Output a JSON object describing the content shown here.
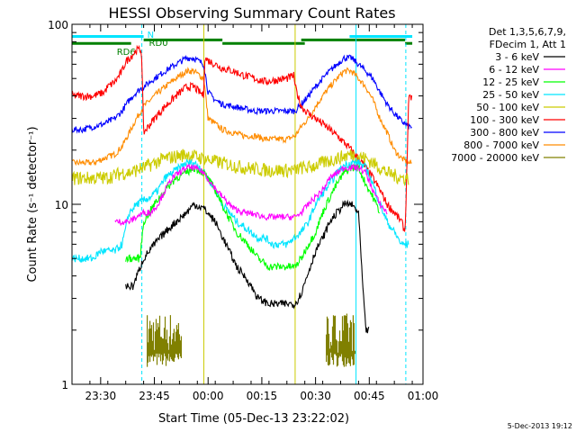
{
  "chart_data": {
    "type": "line",
    "title": "HESSI Observing Summary Count Rates",
    "xlabel": "Start Time (05-Dec-13 23:22:02)",
    "ylabel": "Count Rate (s⁻¹ detector⁻¹)",
    "xlim": [
      0,
      98
    ],
    "ylim": [
      1,
      100
    ],
    "yscale": "log",
    "x_unit": "minutes after 23:22:02",
    "x_ticks": [
      {
        "t": 8,
        "label": "23:30"
      },
      {
        "t": 23,
        "label": "23:45"
      },
      {
        "t": 38,
        "label": "00:00"
      },
      {
        "t": 53,
        "label": "00:15"
      },
      {
        "t": 68,
        "label": "00:30"
      },
      {
        "t": 83,
        "label": "00:45"
      },
      {
        "t": 98,
        "label": "01:00"
      }
    ],
    "y_ticks": [
      {
        "v": 1,
        "label": "1"
      },
      {
        "v": 10,
        "label": "10"
      },
      {
        "v": 100,
        "label": "100"
      }
    ],
    "legend": {
      "header": [
        "Det 1,3,5,6,7,9,",
        "FDecim 1, Att 1"
      ],
      "placement": "right"
    },
    "flags": [
      {
        "name": "N",
        "color": "#00e5ff",
        "y": 90,
        "segments": [
          [
            0,
            20
          ],
          [
            77.5,
            95
          ]
        ]
      },
      {
        "name": "RD0",
        "color": "#008000",
        "y": 83,
        "segments": [
          [
            20,
            42
          ],
          [
            64,
            93
          ]
        ]
      },
      {
        "name": "RD6",
        "color": "#008000",
        "y": 76,
        "segments": [
          [
            0,
            16.5
          ],
          [
            42,
            65
          ],
          [
            93,
            95
          ]
        ]
      }
    ],
    "vlines": [
      {
        "t": 19.5,
        "color": "#00e5ff",
        "dashed": true
      },
      {
        "t": 93.2,
        "color": "#00e5ff",
        "dashed": true
      },
      {
        "t": 79.3,
        "color": "#00e5ff",
        "dashed": false
      },
      {
        "t": 36.8,
        "color": "#cccc00",
        "dashed": false
      },
      {
        "t": 62.3,
        "color": "#cccc00",
        "dashed": false
      }
    ],
    "series": [
      {
        "name": "3 - 6 keV",
        "color": "#000000",
        "noise": 0.05,
        "x": [
          15,
          17,
          20,
          23,
          26,
          29,
          32,
          34,
          36.8,
          40,
          43,
          46,
          49,
          52,
          55,
          58,
          60,
          62.3,
          64,
          66,
          68,
          70,
          72,
          74,
          76,
          78,
          80,
          81,
          82,
          83
        ],
        "y": [
          3.5,
          3.5,
          5,
          6,
          7,
          8,
          9,
          10,
          9.5,
          8,
          6,
          4.5,
          3.8,
          3,
          2.8,
          2.8,
          2.8,
          2.8,
          3.2,
          4.2,
          5.5,
          6.5,
          8,
          9,
          10,
          10,
          9,
          4,
          2,
          2
        ]
      },
      {
        "name": "6 - 12 keV",
        "color": "#ff00ff",
        "noise": 0.04,
        "x": [
          12,
          14,
          16,
          18,
          20,
          22,
          24,
          26,
          28,
          30,
          32,
          34,
          36.8,
          39,
          42,
          45,
          48,
          51,
          54,
          57,
          60,
          62.3,
          64,
          66,
          68,
          70,
          72,
          74,
          76,
          78,
          80,
          82,
          84,
          86,
          88
        ],
        "y": [
          8,
          8,
          8,
          8.5,
          9,
          9,
          10,
          12,
          14,
          15,
          16,
          16,
          15,
          13,
          11,
          9.5,
          9,
          8.8,
          8.5,
          8.5,
          8.5,
          8.5,
          9,
          10,
          11,
          12,
          14,
          15,
          16,
          16,
          16,
          15,
          12,
          10,
          9
        ]
      },
      {
        "name": "12 - 25 keV",
        "color": "#00ff00",
        "noise": 0.05,
        "x": [
          15,
          17,
          19,
          20,
          23,
          26,
          29,
          32,
          34,
          36.8,
          40,
          43,
          46,
          49,
          52,
          55,
          58,
          60,
          62.3,
          64,
          66,
          68,
          70,
          72,
          74,
          76,
          78,
          80,
          82,
          84,
          86
        ],
        "y": [
          5,
          5,
          5,
          8,
          10,
          12,
          14,
          15,
          16,
          15,
          12,
          9,
          7,
          6,
          5,
          4.5,
          4.5,
          4.5,
          4.5,
          5,
          6,
          7,
          9,
          11,
          13,
          15,
          16,
          16,
          13,
          11,
          9
        ]
      },
      {
        "name": "25 - 50 keV",
        "color": "#00e5ff",
        "noise": 0.05,
        "x": [
          0,
          2,
          4,
          6,
          8,
          10,
          12,
          14,
          16,
          18,
          20,
          22,
          24,
          26,
          28,
          30,
          32,
          34,
          36,
          36.8,
          38,
          40,
          42,
          44,
          46,
          48,
          50,
          52,
          54,
          56,
          58,
          60,
          62,
          64,
          66,
          68,
          70,
          72,
          74,
          76,
          78,
          80,
          82,
          84,
          86,
          88,
          90,
          92,
          94
        ],
        "y": [
          5,
          5,
          5,
          5,
          5.5,
          5.5,
          5.5,
          6,
          9,
          10,
          10.5,
          11,
          12,
          14,
          15,
          16,
          17,
          17,
          16,
          15,
          14,
          12,
          10,
          9,
          8,
          7.5,
          7,
          6.5,
          6.5,
          6,
          6,
          6,
          6.5,
          7,
          8,
          10,
          11.5,
          13,
          15,
          16.5,
          17,
          17,
          16,
          13,
          10,
          8,
          7,
          6,
          6
        ]
      },
      {
        "name": "50 - 100 keV",
        "color": "#cccc00",
        "noise": 0.09,
        "x": [
          0,
          3,
          6,
          9,
          12,
          14,
          16,
          18,
          20,
          23,
          26,
          29,
          32,
          34,
          36.8,
          39,
          42,
          45,
          48,
          51,
          54,
          57,
          60,
          62.3,
          64,
          66,
          68,
          70,
          72,
          74,
          76,
          78,
          80,
          82,
          84,
          86,
          88,
          90,
          92,
          94
        ],
        "y": [
          14,
          14,
          14,
          14,
          14.5,
          15,
          15,
          15.5,
          16,
          17,
          18,
          18.5,
          19,
          18.5,
          18,
          17.5,
          17,
          16.5,
          16,
          15.8,
          15.5,
          15.5,
          15.5,
          15.5,
          16,
          16,
          16.5,
          17,
          17.5,
          18,
          18.5,
          19,
          18.5,
          18,
          17,
          16,
          15,
          14.5,
          14,
          14
        ]
      },
      {
        "name": "100 - 300 keV",
        "color": "#ff0000",
        "noise": 0.05,
        "x": [
          0,
          3,
          6,
          9,
          10,
          12,
          14,
          15,
          16,
          17,
          18,
          19,
          19.4,
          20,
          23,
          26,
          29,
          32,
          34,
          36.8,
          37,
          38,
          40,
          42,
          45,
          48,
          51,
          54,
          57,
          60,
          62,
          62.3,
          64,
          66,
          68,
          70,
          72,
          74,
          76,
          78,
          80,
          82,
          84,
          86,
          88,
          90,
          92,
          93,
          94,
          95
        ],
        "y": [
          40,
          40,
          40,
          42,
          45,
          48,
          55,
          62,
          65,
          68,
          72,
          72,
          72,
          25,
          30,
          35,
          40,
          45,
          45,
          40,
          65,
          63,
          60,
          57,
          55,
          52,
          50,
          48,
          49,
          50,
          52,
          45,
          35,
          32,
          30,
          28,
          26,
          24,
          22,
          20,
          18,
          16,
          14,
          12,
          10,
          9,
          8,
          7,
          38,
          40
        ]
      },
      {
        "name": "300 - 800 keV",
        "color": "#0000ff",
        "noise": 0.04,
        "x": [
          0,
          3,
          6,
          9,
          12,
          14,
          16,
          18,
          20,
          23,
          26,
          29,
          32,
          34,
          36.8,
          38,
          40,
          42,
          45,
          48,
          51,
          54,
          57,
          60,
          62.3,
          64,
          66,
          68,
          70,
          72,
          74,
          76,
          78,
          80,
          82,
          84,
          86,
          88,
          90,
          92,
          94,
          95
        ],
        "y": [
          26,
          26,
          27,
          28,
          30,
          33,
          38,
          42,
          45,
          50,
          55,
          60,
          65,
          65,
          60,
          42,
          38,
          36,
          35,
          34,
          33,
          33,
          33,
          33,
          33,
          36,
          40,
          45,
          50,
          55,
          60,
          65,
          65,
          60,
          55,
          50,
          42,
          36,
          32,
          29,
          27,
          27
        ]
      },
      {
        "name": "800 - 7000 keV",
        "color": "#ff8c00",
        "noise": 0.04,
        "x": [
          0,
          3,
          6,
          9,
          12,
          14,
          16,
          18,
          20,
          23,
          26,
          29,
          32,
          34,
          36.8,
          38,
          40,
          42,
          45,
          48,
          51,
          54,
          57,
          60,
          62.3,
          64,
          66,
          68,
          70,
          72,
          74,
          76,
          78,
          80,
          82,
          84,
          86,
          88,
          90,
          92,
          94,
          95
        ],
        "y": [
          17,
          17,
          17,
          18,
          19,
          21,
          25,
          30,
          35,
          40,
          45,
          50,
          55,
          55,
          50,
          30,
          28,
          26,
          25,
          24,
          24,
          23,
          23,
          23,
          24,
          27,
          30,
          35,
          40,
          45,
          50,
          55,
          55,
          50,
          45,
          38,
          30,
          25,
          20,
          18,
          17,
          17
        ]
      },
      {
        "name": "7000 - 20000 keV",
        "color": "#808000",
        "noise": 0,
        "bursts": [
          {
            "from": 21,
            "to": 30.5,
            "lo": 1.25,
            "hi": 2.0
          },
          {
            "from": 71,
            "to": 79,
            "lo": 1.25,
            "hi": 2.0
          }
        ]
      }
    ]
  },
  "footer_timestamp": "5-Dec-2013 19:12"
}
